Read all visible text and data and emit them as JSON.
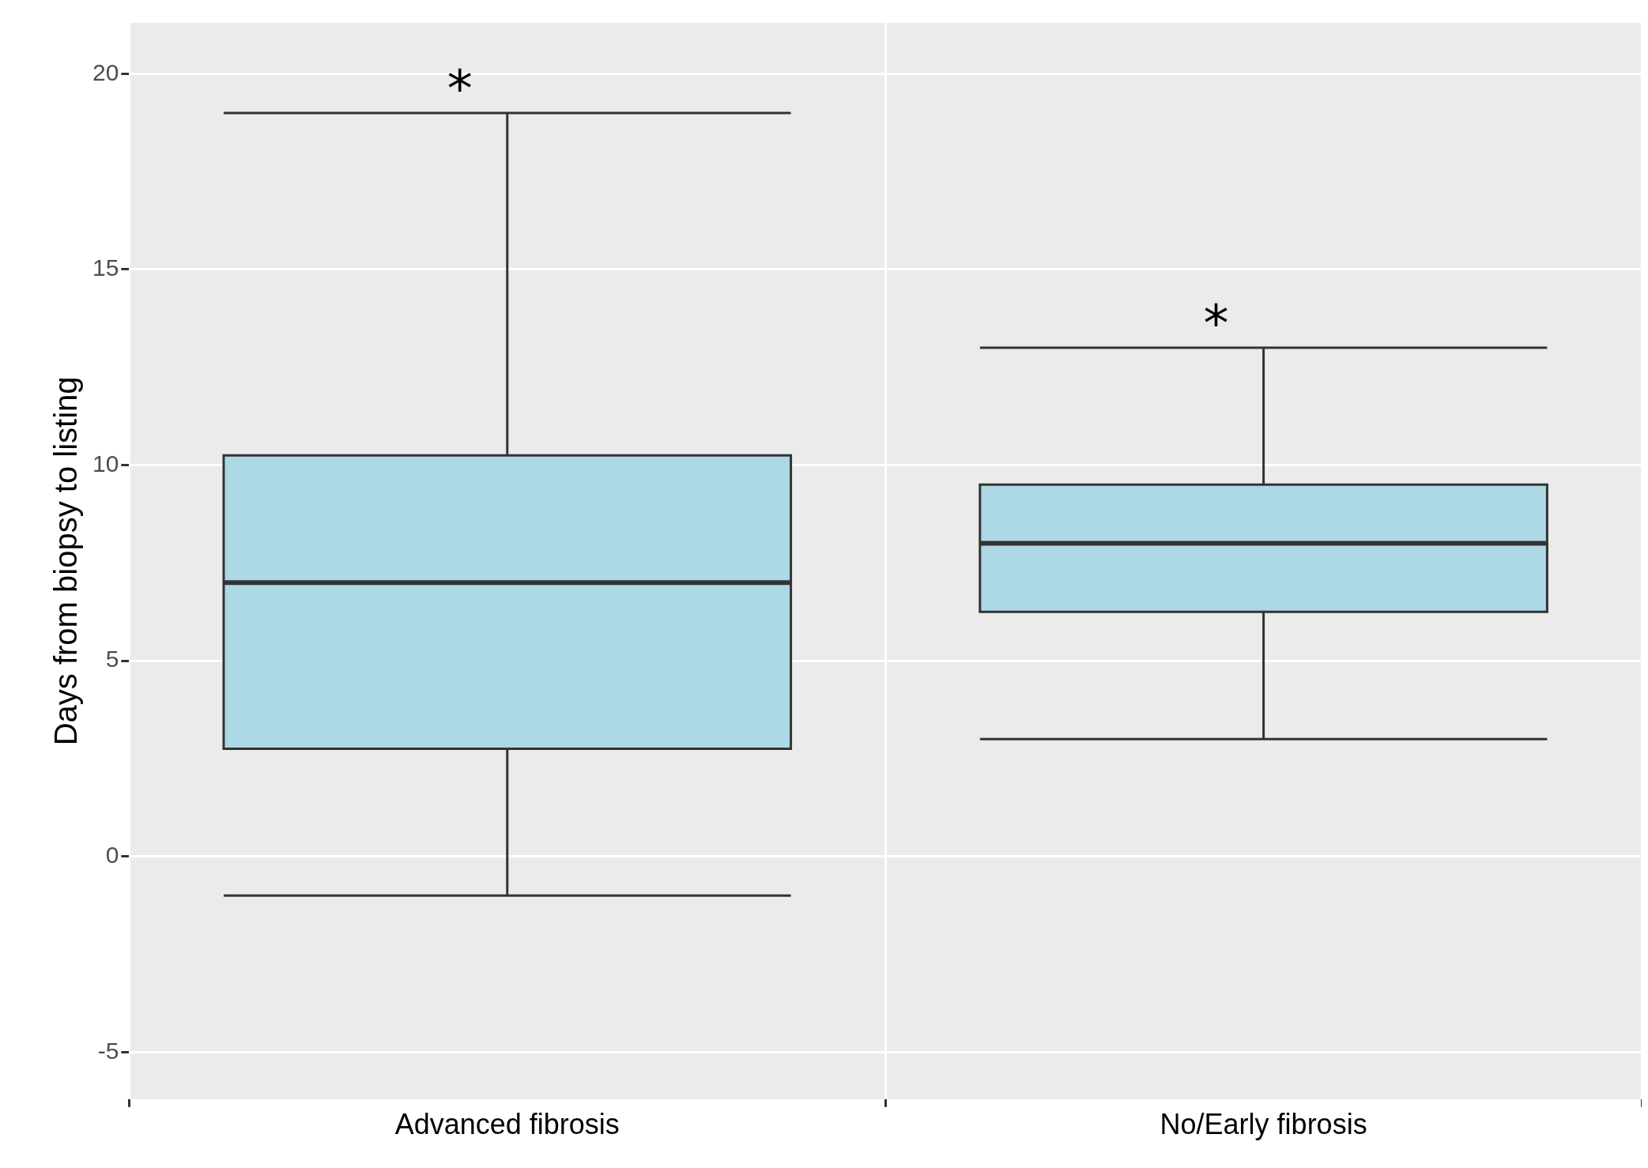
{
  "chart_data": {
    "type": "box",
    "ylabel": "Days from biopsy to listing",
    "categories": [
      "Advanced fibrosis",
      "No/Early fibrosis"
    ],
    "boxes": [
      {
        "low": -1,
        "q1": 2.75,
        "median": 7,
        "q3": 10.25,
        "high": 19
      },
      {
        "low": 3,
        "q1": 6.25,
        "median": 8,
        "q3": 9.5,
        "high": 13
      }
    ],
    "color": "#add8e6",
    "ylim": [
      -6.2,
      21.3
    ],
    "yticks": [
      -5,
      0,
      5,
      10,
      15,
      20
    ],
    "grid": true,
    "annotations": [
      "*",
      "*"
    ]
  }
}
